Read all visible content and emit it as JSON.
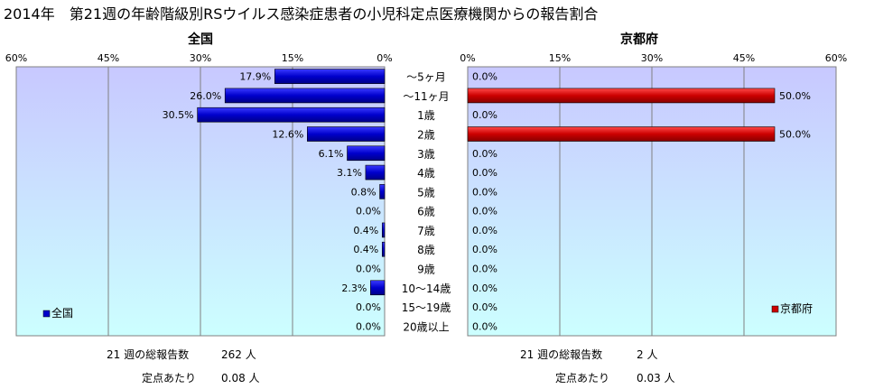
{
  "title": "2014年　第21週の年齢階級別RSウイルス感染症患者の小児科定点医療機関からの報告割合",
  "colors": {
    "national_bar": "#0000cc",
    "kyoto_bar": "#cc0000",
    "plot_gradient_top": "#c8c8ff",
    "plot_gradient_bottom": "#ccffff"
  },
  "chart_data": [
    {
      "type": "bar",
      "orientation": "horizontal",
      "direction": "right-to-left",
      "title": "全国",
      "legend": "全国",
      "legend_position": "bottom-left",
      "grid": true,
      "xlim": [
        0,
        60
      ],
      "tick_labels": [
        "60%",
        "45%",
        "30%",
        "15%",
        "0%"
      ],
      "categories": [
        "～5ヶ月",
        "～11ヶ月",
        "1歳",
        "2歳",
        "3歳",
        "4歳",
        "5歳",
        "6歳",
        "7歳",
        "8歳",
        "9歳",
        "10～14歳",
        "15～19歳",
        "20歳以上"
      ],
      "values": [
        17.9,
        26.0,
        30.5,
        12.6,
        6.1,
        3.1,
        0.8,
        0.0,
        0.4,
        0.4,
        0.0,
        2.3,
        0.0,
        0.0
      ],
      "value_labels": [
        "17.9%",
        "26.0%",
        "30.5%",
        "12.6%",
        "6.1%",
        "3.1%",
        "0.8%",
        "0.0%",
        "0.4%",
        "0.4%",
        "0.0%",
        "2.3%",
        "0.0%",
        "0.0%"
      ]
    },
    {
      "type": "bar",
      "orientation": "horizontal",
      "direction": "left-to-right",
      "title": "京都府",
      "legend": "京都府",
      "legend_position": "bottom-right",
      "grid": true,
      "xlim": [
        0,
        60
      ],
      "tick_labels": [
        "0%",
        "15%",
        "30%",
        "45%",
        "60%"
      ],
      "categories": [
        "～5ヶ月",
        "～11ヶ月",
        "1歳",
        "2歳",
        "3歳",
        "4歳",
        "5歳",
        "6歳",
        "7歳",
        "8歳",
        "9歳",
        "10～14歳",
        "15～19歳",
        "20歳以上"
      ],
      "values": [
        0.0,
        50.0,
        0.0,
        50.0,
        0.0,
        0.0,
        0.0,
        0.0,
        0.0,
        0.0,
        0.0,
        0.0,
        0.0,
        0.0
      ],
      "value_labels": [
        "0.0%",
        "50.0%",
        "0.0%",
        "50.0%",
        "0.0%",
        "0.0%",
        "0.0%",
        "0.0%",
        "0.0%",
        "0.0%",
        "0.0%",
        "0.0%",
        "0.0%",
        "0.0%"
      ]
    }
  ],
  "footer": {
    "national": {
      "total_label": "21 週の総報告数",
      "total_value": "262 人",
      "per_label": "定点あたり",
      "per_value": "0.08 人"
    },
    "kyoto": {
      "total_label": "21 週の総報告数",
      "total_value": "2 人",
      "per_label": "定点あたり",
      "per_value": "0.03 人"
    }
  }
}
